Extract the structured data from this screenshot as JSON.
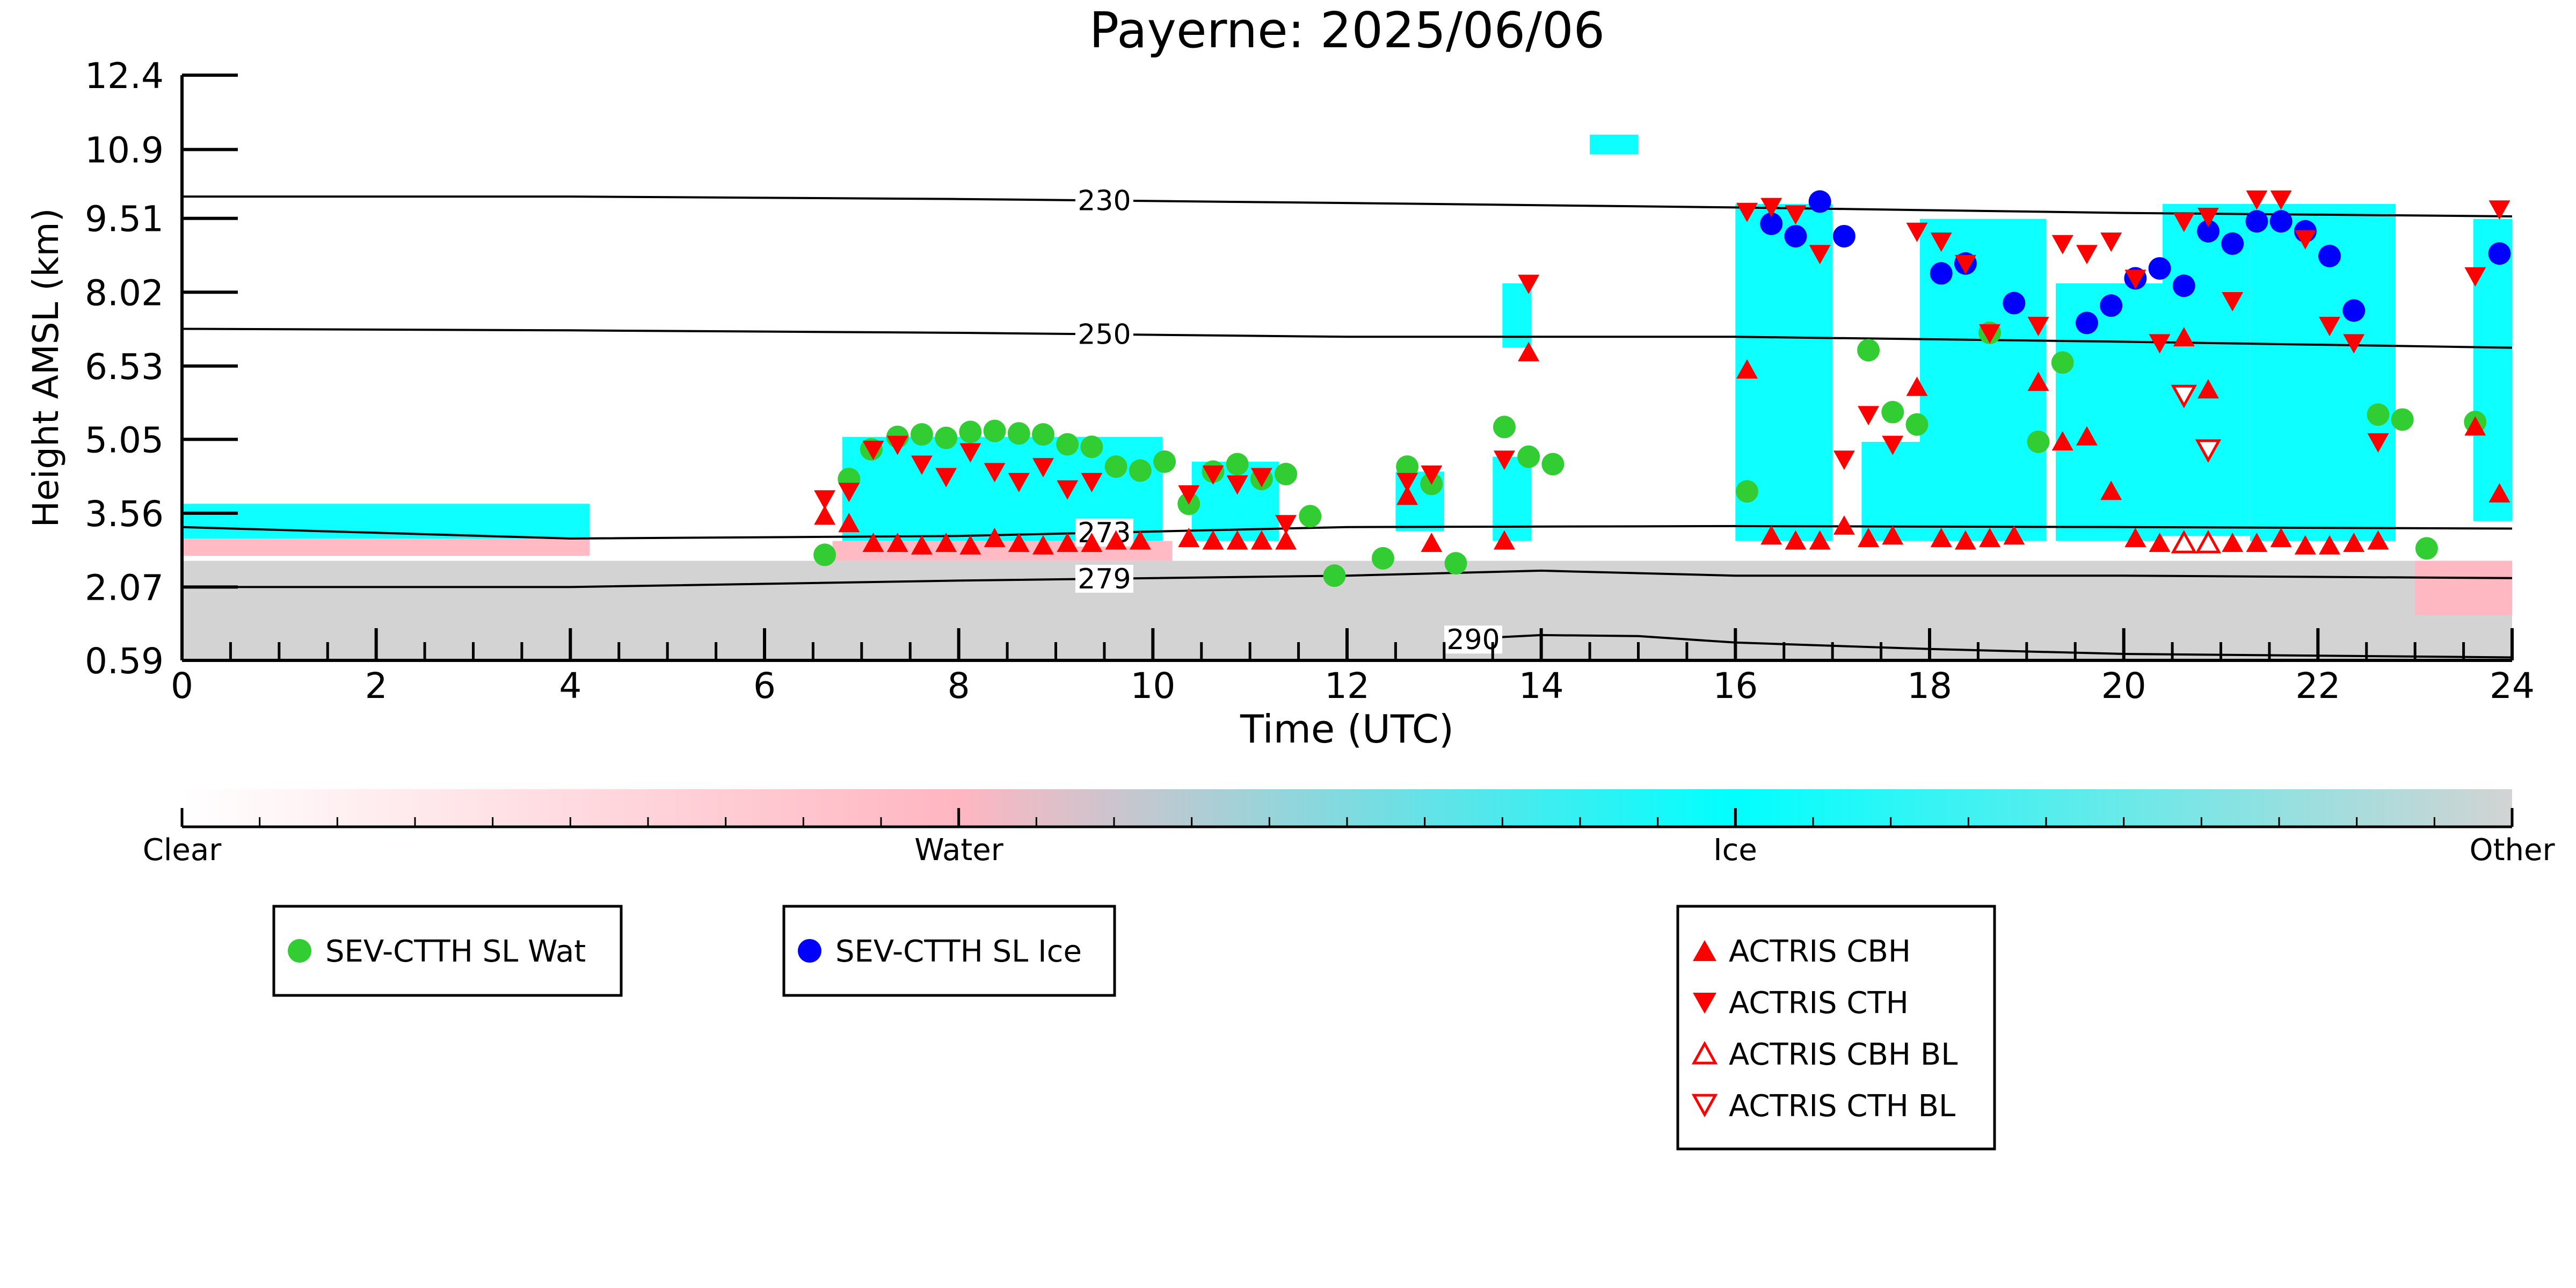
{
  "chart_data": {
    "type": "scatter",
    "title": "Payerne: 2025/06/06",
    "xlabel": "Time (UTC)",
    "ylabel": "Height AMSL (km)",
    "xlim": [
      0,
      24
    ],
    "ylim": [
      0.59,
      12.4
    ],
    "x_ticks": [
      0,
      2,
      4,
      6,
      8,
      10,
      12,
      14,
      16,
      18,
      20,
      22,
      24
    ],
    "y_ticks": [
      "0.59",
      "2.07",
      "3.56",
      "5.05",
      "6.53",
      "8.02",
      "9.51",
      "10.9",
      "12.4"
    ],
    "grid": false,
    "background": {
      "colorbar_labels": [
        "Clear",
        "Water",
        "Ice",
        "Other"
      ],
      "colors": {
        "clear": "#ffffff",
        "water": "#ffb6c1",
        "ice": "#00ffff",
        "other": "#d3d3d3"
      },
      "regions": [
        {
          "class": "other",
          "x0": 0.0,
          "x1": 24.0,
          "y0": 0.59,
          "y1": 2.6
        },
        {
          "class": "water",
          "x0": 0.0,
          "x1": 4.2,
          "y0": 2.7,
          "y1": 3.05
        },
        {
          "class": "ice",
          "x0": 0.0,
          "x1": 4.2,
          "y0": 3.05,
          "y1": 3.75
        },
        {
          "class": "water",
          "x0": 6.7,
          "x1": 10.2,
          "y0": 2.6,
          "y1": 3.0
        },
        {
          "class": "ice",
          "x0": 6.8,
          "x1": 10.1,
          "y0": 3.0,
          "y1": 5.1
        },
        {
          "class": "ice",
          "x0": 10.4,
          "x1": 11.3,
          "y0": 3.0,
          "y1": 4.6
        },
        {
          "class": "ice",
          "x0": 12.5,
          "x1": 13.0,
          "y0": 3.2,
          "y1": 4.4
        },
        {
          "class": "ice",
          "x0": 13.5,
          "x1": 13.9,
          "y0": 3.0,
          "y1": 4.7
        },
        {
          "class": "ice",
          "x0": 13.6,
          "x1": 13.9,
          "y0": 6.9,
          "y1": 8.2
        },
        {
          "class": "ice",
          "x0": 16.0,
          "x1": 17.0,
          "y0": 3.0,
          "y1": 9.8
        },
        {
          "class": "ice",
          "x0": 14.5,
          "x1": 15.0,
          "y0": 10.8,
          "y1": 11.2
        },
        {
          "class": "ice",
          "x0": 17.3,
          "x1": 17.9,
          "y0": 3.0,
          "y1": 5.0
        },
        {
          "class": "ice",
          "x0": 17.9,
          "x1": 19.2,
          "y0": 3.0,
          "y1": 9.5
        },
        {
          "class": "ice",
          "x0": 19.3,
          "x1": 20.4,
          "y0": 3.0,
          "y1": 8.2
        },
        {
          "class": "ice",
          "x0": 20.4,
          "x1": 21.3,
          "y0": 3.1,
          "y1": 9.8
        },
        {
          "class": "ice",
          "x0": 21.3,
          "x1": 22.8,
          "y0": 3.0,
          "y1": 9.8
        },
        {
          "class": "ice",
          "x0": 23.6,
          "x1": 24.0,
          "y0": 3.4,
          "y1": 9.5
        },
        {
          "class": "water",
          "x0": 23.0,
          "x1": 24.0,
          "y0": 1.5,
          "y1": 2.6
        }
      ]
    },
    "contours": [
      {
        "label": "230",
        "label_x": 9.5,
        "x": [
          0,
          4,
          8,
          12,
          16,
          20,
          24
        ],
        "y": [
          9.95,
          9.95,
          9.9,
          9.82,
          9.73,
          9.62,
          9.55
        ]
      },
      {
        "label": "250",
        "label_x": 9.5,
        "x": [
          0,
          4,
          8,
          12,
          16,
          20,
          24
        ],
        "y": [
          7.28,
          7.25,
          7.2,
          7.12,
          7.12,
          7.02,
          6.9
        ]
      },
      {
        "label": "273",
        "label_x": 9.5,
        "x": [
          0,
          4,
          8,
          12,
          16,
          20,
          24
        ],
        "y": [
          3.28,
          3.05,
          3.1,
          3.28,
          3.3,
          3.28,
          3.25
        ]
      },
      {
        "label": "279",
        "label_x": 9.5,
        "x": [
          0,
          4,
          8,
          12,
          14,
          16,
          20,
          24
        ],
        "y": [
          2.07,
          2.07,
          2.2,
          2.3,
          2.4,
          2.3,
          2.3,
          2.25
        ]
      },
      {
        "label": "290",
        "label_x": 13.3,
        "x": [
          13.0,
          13.5,
          14.0,
          15.0,
          16.0,
          18.0,
          20.0,
          24.0
        ],
        "y": [
          0.95,
          1.05,
          1.1,
          1.08,
          0.95,
          0.82,
          0.72,
          0.65
        ]
      }
    ],
    "series": [
      {
        "name": "SEV-CTTH SL Wat",
        "marker": "circle",
        "color": "#32cd32",
        "points": [
          [
            6.62,
            2.72
          ],
          [
            6.87,
            4.25
          ],
          [
            7.1,
            4.85
          ],
          [
            7.37,
            5.1
          ],
          [
            7.62,
            5.15
          ],
          [
            7.87,
            5.08
          ],
          [
            8.12,
            5.2
          ],
          [
            8.37,
            5.22
          ],
          [
            8.62,
            5.17
          ],
          [
            8.87,
            5.15
          ],
          [
            9.12,
            4.95
          ],
          [
            9.37,
            4.9
          ],
          [
            9.62,
            4.5
          ],
          [
            9.87,
            4.42
          ],
          [
            10.12,
            4.6
          ],
          [
            10.37,
            3.75
          ],
          [
            10.62,
            4.4
          ],
          [
            10.87,
            4.55
          ],
          [
            11.12,
            4.25
          ],
          [
            11.37,
            4.35
          ],
          [
            11.62,
            3.5
          ],
          [
            11.87,
            2.3
          ],
          [
            12.37,
            2.65
          ],
          [
            12.62,
            4.5
          ],
          [
            12.87,
            4.15
          ],
          [
            13.12,
            2.55
          ],
          [
            13.62,
            5.3
          ],
          [
            13.87,
            4.7
          ],
          [
            14.12,
            4.55
          ],
          [
            16.12,
            4.0
          ],
          [
            17.37,
            6.85
          ],
          [
            17.62,
            5.6
          ],
          [
            17.87,
            5.35
          ],
          [
            18.62,
            7.2
          ],
          [
            19.12,
            5.0
          ],
          [
            19.37,
            6.6
          ],
          [
            22.62,
            5.55
          ],
          [
            22.87,
            5.45
          ],
          [
            23.12,
            2.85
          ],
          [
            23.62,
            5.4
          ]
        ]
      },
      {
        "name": "SEV-CTTH SL Ice",
        "marker": "circle",
        "color": "#0000ff",
        "points": [
          [
            16.37,
            9.4
          ],
          [
            16.62,
            9.15
          ],
          [
            16.87,
            9.85
          ],
          [
            17.12,
            9.15
          ],
          [
            18.12,
            8.4
          ],
          [
            18.37,
            8.6
          ],
          [
            18.87,
            7.8
          ],
          [
            19.62,
            7.4
          ],
          [
            19.87,
            7.75
          ],
          [
            20.12,
            8.3
          ],
          [
            20.37,
            8.5
          ],
          [
            20.62,
            8.15
          ],
          [
            20.87,
            9.25
          ],
          [
            21.12,
            9.0
          ],
          [
            21.37,
            9.45
          ],
          [
            21.62,
            9.45
          ],
          [
            21.87,
            9.25
          ],
          [
            22.12,
            8.75
          ],
          [
            22.37,
            7.65
          ],
          [
            23.87,
            8.8
          ]
        ]
      },
      {
        "name": "ACTRIS CBH",
        "marker": "triangle-up",
        "color": "#ff0000",
        "filled": true,
        "points": [
          [
            6.62,
            3.5
          ],
          [
            6.87,
            3.35
          ],
          [
            7.12,
            2.95
          ],
          [
            7.37,
            2.95
          ],
          [
            7.62,
            2.9
          ],
          [
            7.87,
            2.95
          ],
          [
            8.12,
            2.9
          ],
          [
            8.37,
            3.05
          ],
          [
            8.62,
            2.95
          ],
          [
            8.87,
            2.9
          ],
          [
            9.12,
            2.95
          ],
          [
            9.37,
            2.95
          ],
          [
            9.62,
            3.0
          ],
          [
            9.87,
            3.0
          ],
          [
            10.37,
            3.05
          ],
          [
            10.62,
            3.0
          ],
          [
            10.87,
            3.0
          ],
          [
            11.12,
            3.0
          ],
          [
            11.37,
            3.0
          ],
          [
            12.62,
            3.9
          ],
          [
            12.87,
            2.95
          ],
          [
            13.62,
            3.0
          ],
          [
            13.87,
            6.8
          ],
          [
            16.12,
            6.45
          ],
          [
            16.37,
            3.1
          ],
          [
            16.62,
            3.0
          ],
          [
            16.87,
            3.0
          ],
          [
            17.12,
            3.3
          ],
          [
            17.37,
            3.05
          ],
          [
            17.62,
            3.1
          ],
          [
            17.87,
            6.1
          ],
          [
            18.12,
            3.05
          ],
          [
            18.37,
            3.0
          ],
          [
            18.62,
            3.05
          ],
          [
            18.87,
            3.1
          ],
          [
            19.12,
            6.2
          ],
          [
            19.37,
            5.0
          ],
          [
            19.62,
            5.1
          ],
          [
            19.87,
            4.0
          ],
          [
            20.12,
            3.05
          ],
          [
            20.37,
            2.95
          ],
          [
            20.62,
            7.1
          ],
          [
            20.87,
            6.05
          ],
          [
            21.12,
            2.95
          ],
          [
            21.37,
            2.95
          ],
          [
            21.62,
            3.05
          ],
          [
            21.87,
            2.9
          ],
          [
            22.12,
            2.9
          ],
          [
            22.37,
            2.95
          ],
          [
            22.62,
            3.0
          ],
          [
            23.62,
            5.3
          ],
          [
            23.87,
            3.95
          ]
        ]
      },
      {
        "name": "ACTRIS CTH",
        "marker": "triangle-down",
        "color": "#ff0000",
        "filled": true,
        "points": [
          [
            6.62,
            3.85
          ],
          [
            6.87,
            4.0
          ],
          [
            7.12,
            4.85
          ],
          [
            7.37,
            4.95
          ],
          [
            7.62,
            4.55
          ],
          [
            7.87,
            4.3
          ],
          [
            8.12,
            4.8
          ],
          [
            8.37,
            4.4
          ],
          [
            8.62,
            4.2
          ],
          [
            8.87,
            4.5
          ],
          [
            9.12,
            4.05
          ],
          [
            9.37,
            4.2
          ],
          [
            10.37,
            3.95
          ],
          [
            10.62,
            4.35
          ],
          [
            10.87,
            4.15
          ],
          [
            11.12,
            4.3
          ],
          [
            11.37,
            3.35
          ],
          [
            12.62,
            4.2
          ],
          [
            12.87,
            4.35
          ],
          [
            13.62,
            4.65
          ],
          [
            13.87,
            8.2
          ],
          [
            16.12,
            9.65
          ],
          [
            16.37,
            9.75
          ],
          [
            16.62,
            9.6
          ],
          [
            16.87,
            8.8
          ],
          [
            17.12,
            4.65
          ],
          [
            17.37,
            5.55
          ],
          [
            17.62,
            4.95
          ],
          [
            17.87,
            9.25
          ],
          [
            18.12,
            9.05
          ],
          [
            18.37,
            8.6
          ],
          [
            18.62,
            7.2
          ],
          [
            19.12,
            7.35
          ],
          [
            19.37,
            9.0
          ],
          [
            19.62,
            8.8
          ],
          [
            19.87,
            9.05
          ],
          [
            20.12,
            8.3
          ],
          [
            20.37,
            7.0
          ],
          [
            20.62,
            9.45
          ],
          [
            20.87,
            9.55
          ],
          [
            21.12,
            7.85
          ],
          [
            21.37,
            9.9
          ],
          [
            21.62,
            9.9
          ],
          [
            21.87,
            9.1
          ],
          [
            22.12,
            7.35
          ],
          [
            22.37,
            7.0
          ],
          [
            22.62,
            5.0
          ],
          [
            23.62,
            8.35
          ],
          [
            23.87,
            9.7
          ]
        ]
      },
      {
        "name": "ACTRIS CBH BL",
        "marker": "triangle-up",
        "color": "#ff0000",
        "filled": false,
        "points": [
          [
            20.62,
            2.95
          ],
          [
            20.87,
            2.95
          ]
        ]
      },
      {
        "name": "ACTRIS CTH BL",
        "marker": "triangle-down",
        "color": "#ff0000",
        "filled": false,
        "points": [
          [
            20.62,
            5.95
          ],
          [
            20.87,
            4.85
          ]
        ]
      }
    ]
  },
  "legends": [
    {
      "items": [
        "SEV-CTTH SL Wat"
      ]
    },
    {
      "items": [
        "SEV-CTTH SL Ice"
      ]
    },
    {
      "items": [
        "ACTRIS CBH",
        "ACTRIS CTH",
        "ACTRIS CBH BL",
        "ACTRIS CTH BL"
      ]
    }
  ]
}
